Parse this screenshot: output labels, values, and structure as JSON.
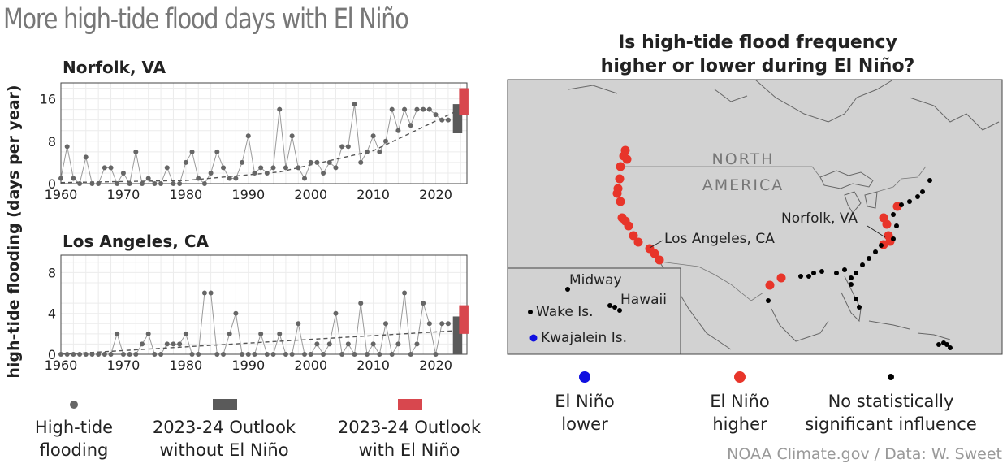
{
  "title": "More high-tide flood days with El Niño",
  "map": {
    "title_line1": "Is high-tide flood frequency",
    "title_line2": "higher or lower during El Niño?",
    "region_label_line1": "NORTH",
    "region_label_line2": "AMERICA",
    "labels": {
      "norfolk": "Norfolk, VA",
      "los_angeles": "Los Angeles, CA",
      "midway": "Midway",
      "hawaii": "Hawaii",
      "wake": "Wake Is.",
      "kwajalein": "Kwajalein Is."
    },
    "legend": {
      "lower": {
        "line1": "El Niño",
        "line2": "lower",
        "color": "#1010e0"
      },
      "higher": {
        "line1": "El Niño",
        "line2": "higher",
        "color": "#e8352a"
      },
      "none": {
        "line1": "No statistically",
        "line2": "significant influence",
        "color": "#000000"
      }
    },
    "colors": {
      "land": "#d2d2d2",
      "border": "#444444"
    }
  },
  "legend": {
    "observed": {
      "line1": "High-tide",
      "line2": "flooding",
      "color": "#666666"
    },
    "without": {
      "line1": "2023-24 Outlook",
      "line2": "without El Niño",
      "color": "#5a5a5a"
    },
    "with": {
      "line1": "2023-24 Outlook",
      "line2": "with El Niño",
      "color": "#d8474e"
    }
  },
  "credit": "NOAA Climate.gov / Data: W. Sweet",
  "chart_data": [
    {
      "type": "line",
      "title": "Norfolk, VA",
      "ylabel": "high-tide flooding (days per year)",
      "xlabel": "",
      "xlim": [
        1960,
        2025
      ],
      "ylim": [
        0,
        19
      ],
      "xticks": [
        "1960",
        "1970",
        "1980",
        "1990",
        "2000",
        "2010",
        "2020"
      ],
      "yticks": [
        "0",
        "8",
        "16"
      ],
      "x": [
        1960,
        1961,
        1962,
        1963,
        1964,
        1965,
        1966,
        1967,
        1968,
        1969,
        1970,
        1971,
        1972,
        1973,
        1974,
        1975,
        1976,
        1977,
        1978,
        1979,
        1980,
        1981,
        1982,
        1983,
        1984,
        1985,
        1986,
        1987,
        1988,
        1989,
        1990,
        1991,
        1992,
        1993,
        1994,
        1995,
        1996,
        1997,
        1998,
        1999,
        2000,
        2001,
        2002,
        2003,
        2004,
        2005,
        2006,
        2007,
        2008,
        2009,
        2010,
        2011,
        2012,
        2013,
        2014,
        2015,
        2016,
        2017,
        2018,
        2019,
        2020,
        2021,
        2022
      ],
      "values": [
        1,
        7,
        1,
        0,
        5,
        0,
        0,
        3,
        3,
        0,
        2,
        0,
        6,
        0,
        1,
        0,
        0,
        3,
        0,
        0,
        4,
        6,
        1,
        0,
        2,
        6,
        3,
        1,
        1,
        4,
        9,
        2,
        3,
        2,
        3,
        14,
        3,
        9,
        3,
        1,
        4,
        4,
        2,
        4,
        3,
        7,
        7,
        15,
        4,
        6,
        9,
        6,
        8,
        14,
        10,
        14,
        11,
        14,
        14,
        14,
        13,
        12,
        12
      ],
      "trend": {
        "x": [
          1960,
          1980,
          1995,
          2010,
          2023
        ],
        "values": [
          0.2,
          0.6,
          2.2,
          6.2,
          13.5
        ]
      },
      "outlook_without": {
        "x": 2023.5,
        "low": 9.5,
        "high": 15
      },
      "outlook_with": {
        "x": 2024.5,
        "low": 13,
        "high": 18
      }
    },
    {
      "type": "line",
      "title": "Los Angeles, CA",
      "ylabel": "high-tide flooding (days per year)",
      "xlabel": "",
      "xlim": [
        1960,
        2025
      ],
      "ylim": [
        0,
        9.7
      ],
      "xticks": [
        "1960",
        "1970",
        "1980",
        "1990",
        "2000",
        "2010",
        "2020"
      ],
      "yticks": [
        "0",
        "4",
        "8"
      ],
      "x": [
        1960,
        1961,
        1962,
        1963,
        1964,
        1965,
        1966,
        1967,
        1968,
        1969,
        1970,
        1971,
        1972,
        1973,
        1974,
        1975,
        1976,
        1977,
        1978,
        1979,
        1980,
        1981,
        1982,
        1983,
        1984,
        1985,
        1986,
        1987,
        1988,
        1989,
        1990,
        1991,
        1992,
        1993,
        1994,
        1995,
        1996,
        1997,
        1998,
        1999,
        2000,
        2001,
        2002,
        2003,
        2004,
        2005,
        2006,
        2007,
        2008,
        2009,
        2010,
        2011,
        2012,
        2013,
        2014,
        2015,
        2016,
        2017,
        2018,
        2019,
        2020,
        2021,
        2022
      ],
      "values": [
        0,
        0,
        0,
        0,
        0,
        0,
        0,
        0,
        0,
        2,
        0,
        0,
        0,
        1,
        2,
        0,
        0,
        1,
        1,
        1,
        2,
        0,
        0,
        6,
        6,
        0,
        0,
        2,
        4,
        0,
        0,
        0,
        2,
        0,
        0,
        2,
        0,
        0,
        3,
        0,
        0,
        1,
        0,
        1,
        4,
        0,
        1,
        0,
        5,
        0,
        1,
        0,
        3,
        0,
        1,
        6,
        0,
        1,
        5,
        3,
        0,
        3,
        3
      ],
      "trend": {
        "x": [
          1960,
          2023
        ],
        "values": [
          0,
          2.3
        ]
      },
      "outlook_without": {
        "x": 2023.5,
        "low": 0,
        "high": 3.7
      },
      "outlook_with": {
        "x": 2024.5,
        "low": 2,
        "high": 4.8
      }
    }
  ]
}
